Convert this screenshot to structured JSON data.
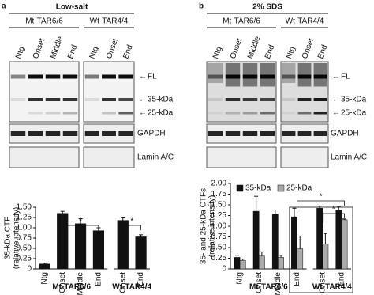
{
  "panels": [
    {
      "letter": "a",
      "condition": "Low-salt",
      "groups": [
        "Mt-TAR6/6",
        "Wt-TAR4/4"
      ],
      "lanes": [
        [
          "Ntg",
          "Onset",
          "Middle",
          "End"
        ],
        [
          "Ntg",
          "Onset",
          "End"
        ]
      ],
      "bands": [
        "FL",
        "35-kDa",
        "25-kDa"
      ],
      "controls": [
        "GAPDH",
        "Lamin A/C"
      ]
    },
    {
      "letter": "b",
      "condition": "2% SDS",
      "groups": [
        "Mt-TAR6/6",
        "Wt-TAR4/4"
      ],
      "lanes": [
        [
          "Ntg",
          "Onset",
          "Middle",
          "End"
        ],
        [
          "Ntg",
          "Onset",
          "End"
        ]
      ],
      "bands": [
        "FL",
        "35-kDa",
        "25-kDa"
      ],
      "controls": [
        "GAPDH",
        "Lamin A/C"
      ]
    }
  ],
  "chart_data": [
    {
      "type": "bar",
      "ylabel": "35-kDa CTF",
      "ylabel_sub": "(relative intensity)",
      "categories": [
        "Ntg",
        "Onset",
        "Middle",
        "End",
        "Onset",
        "End"
      ],
      "group_labels": [
        "Mt-TAR6/6",
        "Wt-TAR4/4"
      ],
      "series": [
        {
          "name": "35-kDa",
          "color": "#111111",
          "values": [
            0.12,
            1.35,
            1.1,
            0.93,
            1.18,
            0.78
          ],
          "errors": [
            0.02,
            0.05,
            0.12,
            0.07,
            0.06,
            0.05
          ]
        }
      ],
      "ylim": [
        0,
        1.5
      ],
      "yticks": [
        0,
        0.25,
        {
          "value": 0.5,
          "label": "0.50"
        },
        0.75,
        {
          "value": 1,
          "label": "1.00"
        },
        1.25,
        {
          "value": 1.5,
          "label": "1.50"
        }
      ],
      "annotations": [
        "*",
        "*"
      ],
      "legend": false
    },
    {
      "type": "bar",
      "ylabel": "35- and 25-kDa CTFs",
      "ylabel_sub": "(relative intensity)",
      "categories": [
        "Ntg",
        "Onset",
        "Middle",
        "End",
        "Onset",
        "End"
      ],
      "group_labels": [
        "Mt-TAR6/6",
        "Wt-TAR4/4"
      ],
      "series": [
        {
          "name": "35-kDa",
          "color": "#111111",
          "values": [
            0.27,
            1.35,
            1.28,
            1.22,
            1.42,
            1.38
          ],
          "errors": [
            0.05,
            0.35,
            0.1,
            0.2,
            0.05,
            0.07
          ]
        },
        {
          "name": "25-kDa",
          "color": "#aaaaaa",
          "values": [
            0.2,
            0.3,
            0.27,
            0.47,
            0.58,
            1.15
          ],
          "errors": [
            0.03,
            0.1,
            0.05,
            0.3,
            0.25,
            0.02
          ]
        }
      ],
      "ylim": [
        0,
        2
      ],
      "yticks": [
        0,
        0.25,
        {
          "value": 0.5,
          "label": "0.50"
        },
        0.75,
        {
          "value": 1,
          "label": "1.00"
        },
        1.25,
        {
          "value": 1.5,
          "label": "1.50"
        },
        1.75,
        {
          "value": 2,
          "label": "2.00"
        }
      ],
      "annotations": [
        "*",
        "*"
      ],
      "legend": true
    }
  ]
}
